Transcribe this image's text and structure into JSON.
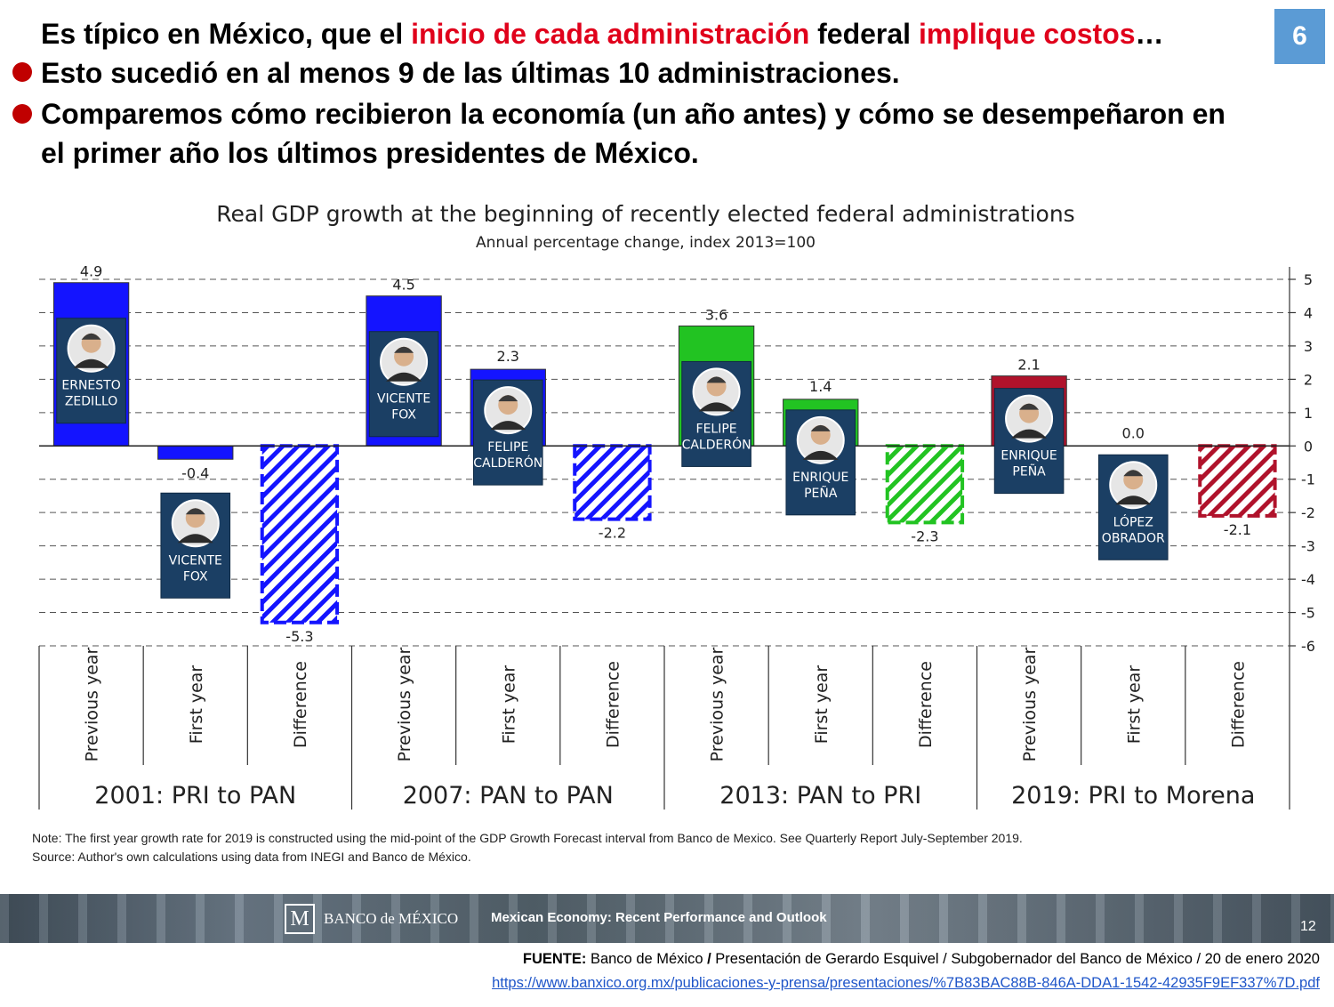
{
  "header": {
    "line1_parts": [
      "Es típico en México, que el ",
      "inicio de cada administración",
      " federal ",
      "implique costos",
      "…"
    ],
    "bullet1": "Esto sucedió en al menos 9 de las últimas 10 administraciones.",
    "bullet2_line1": "Comparemos cómo recibieron la economía (un año antes) y cómo se desempeñaron en",
    "bullet2_line2": "el primer año los últimos presidentes de México.",
    "badge": "6"
  },
  "colors": {
    "accent_red": "#e0001b",
    "bullet_red": "#c00000",
    "badge_blue": "#5b9bd5",
    "pan_blue": "#1414ff",
    "pri_green": "#22c322",
    "morena_red": "#b0122b",
    "portrait_navy": "#1b3f64"
  },
  "chart_data": {
    "type": "bar",
    "title": "Real GDP growth at the beginning of recently elected federal administrations",
    "subtitle": "Annual percentage change, index 2013=100",
    "ylim": [
      -6,
      5
    ],
    "yticks": [
      "5",
      "4",
      "3",
      "2",
      "1",
      "0",
      "-1",
      "-2",
      "-3",
      "-4",
      "-5",
      "-6"
    ],
    "grid": true,
    "category_labels": [
      "Previous year",
      "First year",
      "Difference"
    ],
    "groups": [
      {
        "label": "2001: PRI to PAN",
        "bars": [
          {
            "kind": "Previous year",
            "value": 4.9,
            "label": "4.9",
            "color": "#1414ff",
            "president": "ERNESTO ZEDILLO",
            "pres_lines": [
              "ERNESTO",
              "ZEDILLO"
            ]
          },
          {
            "kind": "First year",
            "value": -0.4,
            "label": "-0.4",
            "color": "#1414ff",
            "president": "VICENTE FOX",
            "pres_lines": [
              "VICENTE",
              "FOX"
            ]
          },
          {
            "kind": "Difference",
            "value": -5.3,
            "label": "-5.3",
            "color": "#1414ff"
          }
        ]
      },
      {
        "label": "2007: PAN to PAN",
        "bars": [
          {
            "kind": "Previous year",
            "value": 4.5,
            "label": "4.5",
            "color": "#1414ff",
            "president": "VICENTE FOX",
            "pres_lines": [
              "VICENTE",
              "FOX"
            ]
          },
          {
            "kind": "First year",
            "value": 2.3,
            "label": "2.3",
            "color": "#1414ff",
            "president": "FELIPE CALDERÓN",
            "pres_lines": [
              "FELIPE",
              "CALDERÓN"
            ]
          },
          {
            "kind": "Difference",
            "value": -2.2,
            "label": "-2.2",
            "color": "#1414ff"
          }
        ]
      },
      {
        "label": "2013: PAN to PRI",
        "bars": [
          {
            "kind": "Previous year",
            "value": 3.6,
            "label": "3.6",
            "color": "#22c322",
            "president": "FELIPE CALDERÓN",
            "pres_lines": [
              "FELIPE",
              "CALDERÓN"
            ]
          },
          {
            "kind": "First year",
            "value": 1.4,
            "label": "1.4",
            "color": "#22c322",
            "president": "ENRIQUE PEÑA",
            "pres_lines": [
              "ENRIQUE",
              "PEÑA"
            ]
          },
          {
            "kind": "Difference",
            "value": -2.3,
            "label": "-2.3",
            "color": "#22c322"
          }
        ]
      },
      {
        "label": "2019: PRI to Morena",
        "bars": [
          {
            "kind": "Previous year",
            "value": 2.1,
            "label": "2.1",
            "color": "#b0122b",
            "president": "ENRIQUE PEÑA",
            "pres_lines": [
              "ENRIQUE",
              "PEÑA"
            ]
          },
          {
            "kind": "First year",
            "value": 0.0,
            "label": "0.0",
            "color": "#b0122b",
            "president": "LÓPEZ OBRADOR",
            "pres_lines": [
              "LÓPEZ",
              "OBRADOR"
            ]
          },
          {
            "kind": "Difference",
            "value": -2.1,
            "label": "-2.1",
            "color": "#b0122b"
          }
        ]
      }
    ]
  },
  "notes": {
    "note": "Note: The first year growth rate for 2019 is constructed using the mid-point of the GDP Growth Forecast interval from Banco de Mexico. See Quarterly Report July-September 2019.",
    "source": "Source: Author's own calculations using data from INEGI and Banco de México."
  },
  "banner": {
    "bank_name": "BANCO de MÉXICO",
    "bank_mark": "M",
    "title": "Mexican Economy: Recent Performance and Outlook",
    "page": "12"
  },
  "footer": {
    "fuente_label": "FUENTE:",
    "fuente_parts": [
      " Banco de México ",
      "/",
      " Presentación de Gerardo Esquivel / Subgobernador del Banco de México / 20 de enero 2020"
    ],
    "url": "https://www.banxico.org.mx/publicaciones-y-prensa/presentaciones/%7B83BAC88B-846A-DDA1-1542-42935F9EF337%7D.pdf"
  }
}
